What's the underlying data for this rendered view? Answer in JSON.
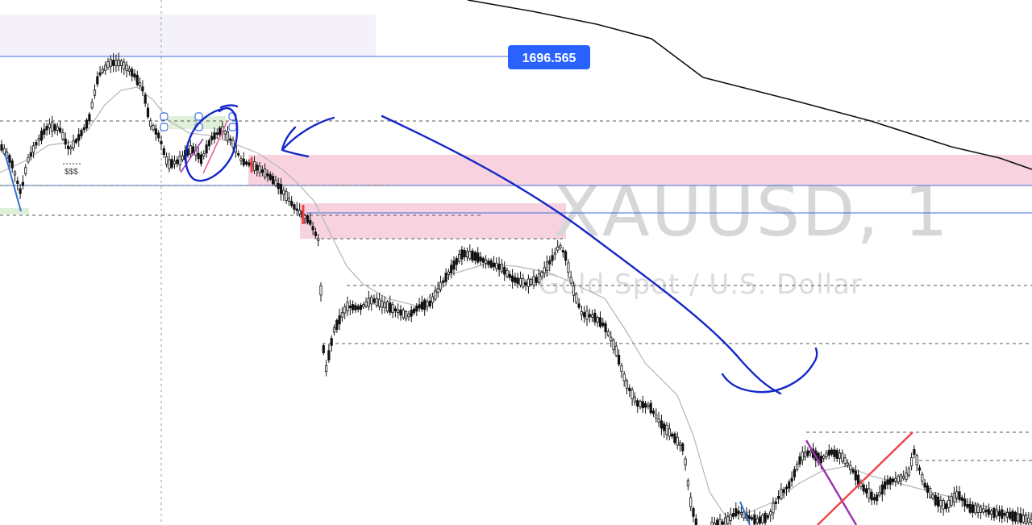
{
  "chart_data": {
    "type": "candlestick",
    "symbol": "XAUUSD",
    "interval": "1",
    "description": "Gold Spot / U.S. Dollar",
    "price_tag": "1696.565",
    "liquidity_label": "$$$",
    "colors": {
      "candle": "#111111",
      "ema": "#b5b5b5",
      "long_ma": "#111111",
      "supply_zone": "#f8d3df",
      "demand_zone": "#dff0d8",
      "range_box": "#f4f1fa",
      "horizontal_line": "#3d6fe0",
      "dashed_line": "#555555",
      "price_tag_bg": "#2962ff",
      "annotation_blue": "#1428c8",
      "trend_red": "#ef4444",
      "trend_purple": "#9b2fae",
      "watermark": "#d7d7da"
    }
  }
}
